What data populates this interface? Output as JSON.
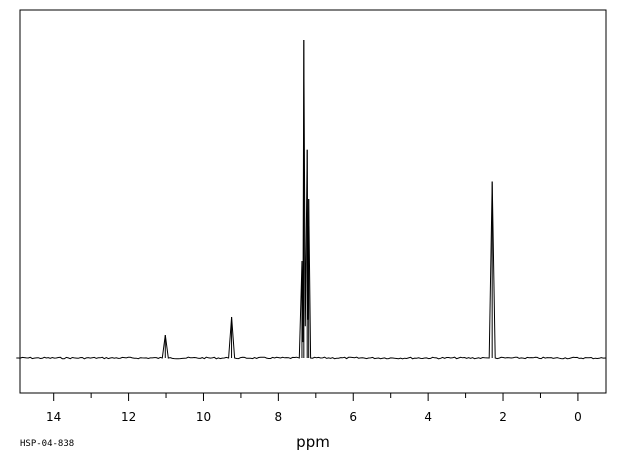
{
  "chart_data": {
    "type": "line",
    "xlabel": "ppm",
    "xlim": [
      14.9,
      -0.75
    ],
    "x_reversed": true,
    "ylim": [
      -0.35,
      1.0
    ],
    "grid": false,
    "legend": "none",
    "sample_id": "HSP-04-838",
    "x_ticks_major": [
      14,
      12,
      10,
      8,
      6,
      4,
      2,
      0
    ],
    "x_tick_labels": [
      "14",
      "12",
      "10",
      "8",
      "6",
      "4",
      "2",
      "0"
    ],
    "x_ticks_minor": [
      15,
      13,
      11,
      9,
      7,
      5,
      3,
      1,
      -1
    ],
    "baseline": 0.0,
    "peaks": [
      {
        "ppm": 11.02,
        "height": 0.072
      },
      {
        "ppm": 9.25,
        "height": 0.129
      },
      {
        "ppm": 7.37,
        "height": 0.305
      },
      {
        "ppm": 7.32,
        "height": 1.0
      },
      {
        "ppm": 7.23,
        "height": 0.655
      },
      {
        "ppm": 7.19,
        "height": 0.5
      },
      {
        "ppm": 2.29,
        "height": 0.555
      }
    ],
    "series": [
      {
        "x": [
          15.0,
          11.1,
          11.02,
          10.94,
          9.33,
          9.25,
          9.17,
          7.44,
          7.37,
          7.345,
          7.32,
          7.28,
          7.23,
          7.21,
          7.19,
          7.14,
          2.37,
          2.29,
          2.21,
          -0.75
        ],
        "y": [
          0.0,
          0.0,
          0.072,
          0.0,
          0.0,
          0.129,
          0.0,
          0.0,
          0.305,
          0.05,
          1.0,
          0.1,
          0.655,
          0.12,
          0.5,
          0.0,
          0.0,
          0.555,
          0.0,
          0.0
        ]
      }
    ]
  }
}
